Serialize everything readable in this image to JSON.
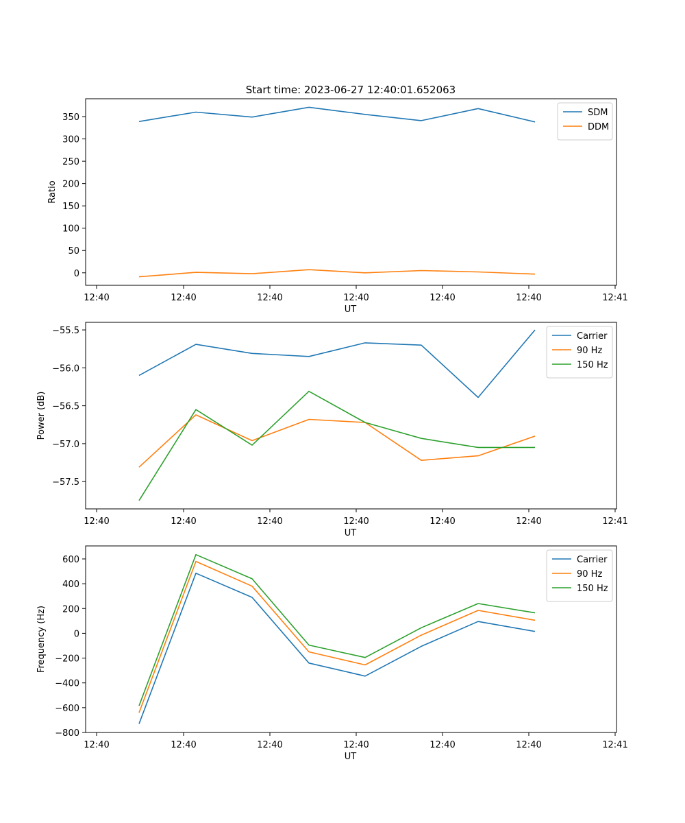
{
  "figure_title": "Start time: 2023-06-27 12:40:01.652063",
  "chart_data": [
    {
      "type": "line",
      "title": "Start time: 2023-06-27 12:40:01.652063",
      "xlabel": "UT",
      "ylabel": "Ratio",
      "x_tick_labels": [
        "12:40",
        "12:40",
        "12:40",
        "12:40",
        "12:40",
        "12:40",
        "12:41"
      ],
      "y_ticks": [
        0,
        50,
        100,
        150,
        200,
        250,
        300,
        350
      ],
      "ylim": [
        -28,
        390
      ],
      "grid": false,
      "legend_position": "top-right",
      "series": [
        {
          "name": "SDM",
          "color": "#1f77b4",
          "values": [
            339,
            360,
            349,
            371,
            355,
            341,
            368,
            338
          ]
        },
        {
          "name": "DDM",
          "color": "#ff7f0e",
          "values": [
            -9,
            1,
            -2,
            7,
            0,
            5,
            2,
            -3
          ]
        }
      ]
    },
    {
      "type": "line",
      "title": "",
      "xlabel": "UT",
      "ylabel": "Power (dB)",
      "x_tick_labels": [
        "12:40",
        "12:40",
        "12:40",
        "12:40",
        "12:40",
        "12:40",
        "12:41"
      ],
      "y_ticks": [
        -57.5,
        -57.0,
        -56.5,
        -56.0,
        -55.5
      ],
      "y_tick_labels": [
        "−57.5",
        "−57.0",
        "−56.5",
        "−56.0",
        "−55.5"
      ],
      "ylim": [
        -57.86,
        -55.4
      ],
      "grid": false,
      "legend_position": "top-right",
      "series": [
        {
          "name": "Carrier",
          "color": "#1f77b4",
          "values": [
            -56.1,
            -55.69,
            -55.81,
            -55.85,
            -55.67,
            -55.7,
            -56.39,
            -55.5
          ]
        },
        {
          "name": "90 Hz",
          "color": "#ff7f0e",
          "values": [
            -57.31,
            -56.62,
            -56.96,
            -56.68,
            -56.72,
            -57.22,
            -57.16,
            -56.9
          ]
        },
        {
          "name": "150 Hz",
          "color": "#2ca02c",
          "values": [
            -57.75,
            -56.55,
            -57.02,
            -56.31,
            -56.72,
            -56.93,
            -57.05,
            -57.05
          ]
        }
      ]
    },
    {
      "type": "line",
      "title": "",
      "xlabel": "UT",
      "ylabel": "Frequency (Hz)",
      "x_tick_labels": [
        "12:40",
        "12:40",
        "12:40",
        "12:40",
        "12:40",
        "12:40",
        "12:41"
      ],
      "y_ticks": [
        -800,
        -600,
        -400,
        -200,
        0,
        200,
        400,
        600
      ],
      "y_tick_labels": [
        "−800",
        "−600",
        "−400",
        "−200",
        "0",
        "200",
        "400",
        "600"
      ],
      "ylim": [
        -800,
        705
      ],
      "grid": false,
      "legend_position": "top-right",
      "series": [
        {
          "name": "Carrier",
          "color": "#1f77b4",
          "values": [
            -730,
            485,
            290,
            -240,
            -345,
            -105,
            95,
            15
          ]
        },
        {
          "name": "90 Hz",
          "color": "#ff7f0e",
          "values": [
            -640,
            580,
            380,
            -150,
            -255,
            -15,
            185,
            105
          ]
        },
        {
          "name": "150 Hz",
          "color": "#2ca02c",
          "values": [
            -585,
            635,
            440,
            -95,
            -195,
            45,
            240,
            165
          ]
        }
      ]
    }
  ]
}
